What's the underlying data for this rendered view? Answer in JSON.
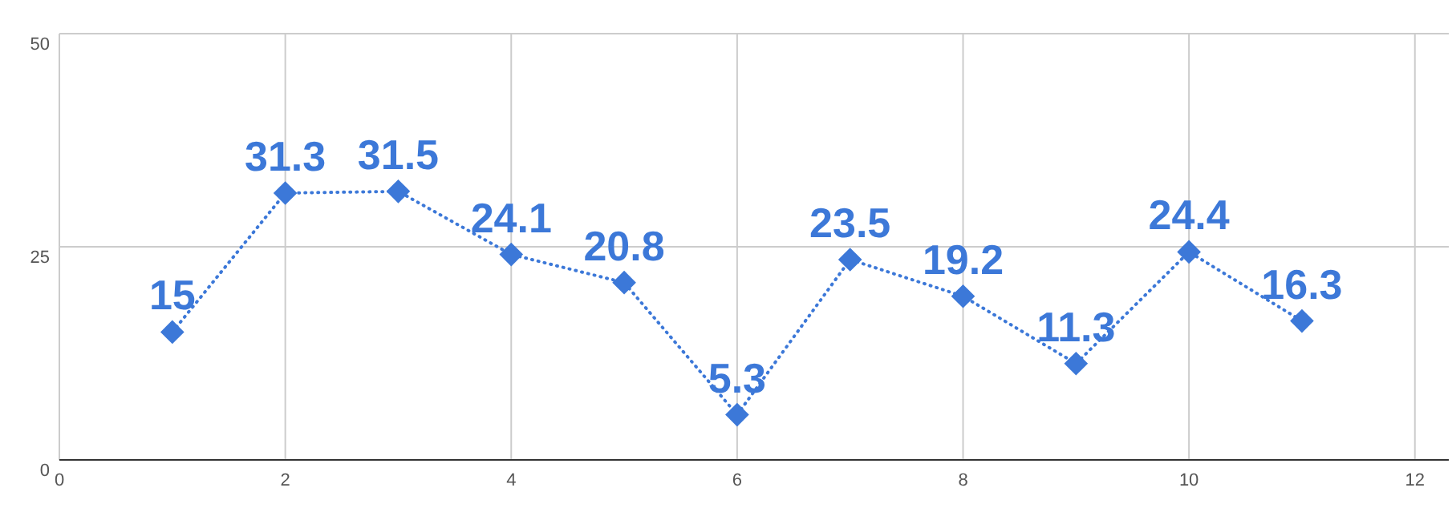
{
  "chart_data": {
    "type": "line",
    "x": [
      1,
      2,
      3,
      4,
      5,
      6,
      7,
      8,
      9,
      10,
      11
    ],
    "series": [
      {
        "color": "#3c78d8",
        "values": [
          15,
          31.3,
          31.5,
          24.1,
          20.8,
          5.3,
          23.5,
          19.2,
          11.3,
          24.4,
          16.3
        ]
      }
    ],
    "xlim": [
      0,
      12.3
    ],
    "xticks": [
      0,
      2,
      4,
      6,
      8,
      10,
      12
    ],
    "ylim": [
      0,
      50
    ],
    "yticks": [
      0,
      25,
      50
    ],
    "grid": true,
    "marker": "diamond",
    "line_style": "dotted",
    "data_labels": true
  }
}
